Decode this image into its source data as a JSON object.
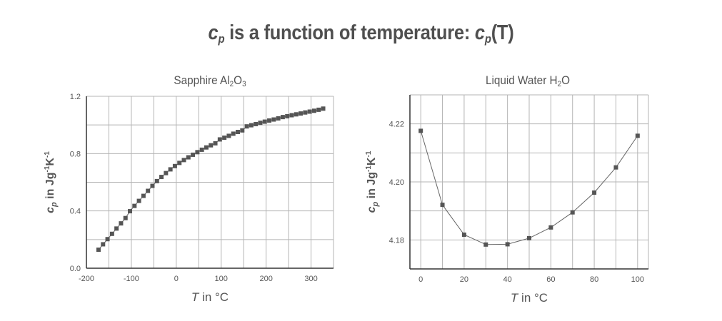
{
  "title": {
    "prefix_symbol": "c",
    "prefix_sub": "p",
    "middle": " is a function of temperature: ",
    "suffix_symbol": "c",
    "suffix_sub": "p",
    "suffix_arg": "(T)"
  },
  "colors": {
    "marker": "#555555",
    "line": "#666666",
    "grid": "#b4b4b4",
    "axis": "#333333",
    "text": "#555555"
  },
  "chart_data": [
    {
      "type": "line",
      "title": "Sapphire Al₂O₃",
      "title_parts": {
        "base": "Sapphire Al",
        "s1": "2",
        "mid": "O",
        "s2": "3"
      },
      "xlabel": "T in °C",
      "ylabel": "cp in Jg-1K-1",
      "xlim": [
        -200,
        350
      ],
      "ylim": [
        0.0,
        1.2
      ],
      "xticks": [
        -200,
        -100,
        0,
        100,
        200,
        300
      ],
      "xtick_labels": [
        "-200",
        "-100",
        "0",
        "100",
        "200",
        "300"
      ],
      "yticks": [
        0.0,
        0.4,
        0.8,
        1.2
      ],
      "ytick_labels": [
        "0.0",
        "0.4",
        "0.8",
        "1.2"
      ],
      "x_grid_step": 50,
      "y_grid_step": 0.2,
      "grid": true,
      "marker": "square",
      "show_line": true,
      "series": [
        {
          "name": "Sapphire",
          "x": [
            -173,
            -163,
            -153,
            -143,
            -133,
            -123,
            -113,
            -103,
            -93,
            -83,
            -73,
            -63,
            -53,
            -43,
            -33,
            -23,
            -13,
            -3,
            7,
            17,
            27,
            37,
            47,
            57,
            67,
            77,
            87,
            97,
            107,
            117,
            127,
            137,
            147,
            157,
            167,
            177,
            187,
            197,
            207,
            217,
            227,
            237,
            247,
            257,
            267,
            277,
            287,
            297,
            307,
            317,
            327
          ],
          "values": [
            0.129,
            0.167,
            0.203,
            0.24,
            0.277,
            0.313,
            0.35,
            0.398,
            0.435,
            0.47,
            0.505,
            0.54,
            0.575,
            0.608,
            0.637,
            0.664,
            0.69,
            0.713,
            0.735,
            0.755,
            0.774,
            0.792,
            0.81,
            0.827,
            0.843,
            0.858,
            0.872,
            0.899,
            0.911,
            0.924,
            0.939,
            0.951,
            0.962,
            0.99,
            0.998,
            1.006,
            1.015,
            1.023,
            1.031,
            1.038,
            1.046,
            1.055,
            1.061,
            1.068,
            1.074,
            1.08,
            1.087,
            1.093,
            1.099,
            1.106,
            1.114
          ]
        }
      ]
    },
    {
      "type": "line",
      "title": "Liquid Water H₂O",
      "title_parts": {
        "base": "Liquid Water H",
        "s1": "2",
        "mid": "O",
        "s2": ""
      },
      "xlabel": "T in °C",
      "ylabel": "cp in Jg-1K-1",
      "xlim": [
        -5,
        105
      ],
      "ylim": [
        4.17,
        4.23
      ],
      "xticks": [
        0,
        20,
        40,
        60,
        80,
        100
      ],
      "xtick_labels": [
        "0",
        "20",
        "40",
        "60",
        "80",
        "100"
      ],
      "yticks": [
        4.18,
        4.2,
        4.22
      ],
      "ytick_labels": [
        "4.18",
        "4.20",
        "4.22"
      ],
      "x_grid_step": 10,
      "y_grid_step": 0.01,
      "grid": true,
      "marker": "square",
      "show_line": true,
      "series": [
        {
          "name": "Water",
          "x": [
            0,
            10,
            20,
            30,
            40,
            50,
            60,
            70,
            80,
            90,
            100
          ],
          "values": [
            4.2176,
            4.1921,
            4.1818,
            4.1784,
            4.1785,
            4.1806,
            4.1843,
            4.1895,
            4.1963,
            4.205,
            4.2159
          ]
        }
      ]
    }
  ],
  "axis_labels": {
    "x_italic": "T",
    "x_rest": " in °C",
    "y_symbol": "c",
    "y_sub": "p",
    "y_rest": " in Jg",
    "y_sup1": "-1",
    "y_k": "K",
    "y_sup2": "-1"
  }
}
